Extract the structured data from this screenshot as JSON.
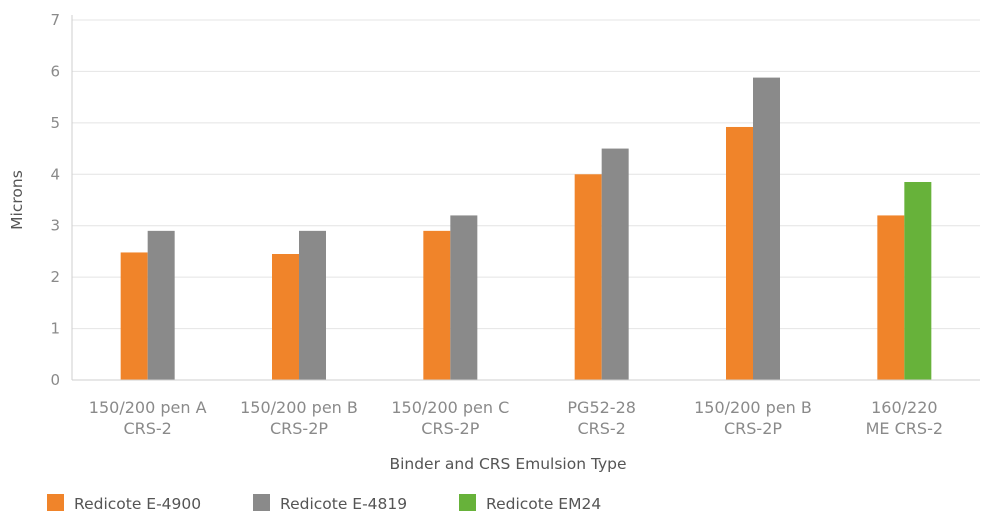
{
  "chart_data": {
    "type": "bar",
    "title": "",
    "xlabel": "Binder and CRS Emulsion Type",
    "ylabel": "Microns",
    "ylim": [
      0,
      7
    ],
    "yticks": [
      "0",
      "1",
      "2",
      "3",
      "4",
      "5",
      "6",
      "7"
    ],
    "grid": true,
    "legend_position": "bottom-left",
    "categories": [
      [
        "150/200 pen A",
        "CRS-2"
      ],
      [
        "150/200 pen B",
        "CRS-2P"
      ],
      [
        "150/200 pen C",
        "CRS-2P"
      ],
      [
        "PG52-28",
        "CRS-2"
      ],
      [
        "150/200 pen B",
        "CRS-2P"
      ],
      [
        "160/220",
        "ME CRS-2"
      ]
    ],
    "series": [
      {
        "name": "Redicote E-4900",
        "color": "#f0842a",
        "values": [
          2.48,
          2.45,
          2.9,
          4.0,
          4.92,
          3.2
        ]
      },
      {
        "name": "Redicote E-4819",
        "color": "#8a8a8a",
        "values": [
          2.9,
          2.9,
          3.2,
          4.5,
          5.88,
          null
        ]
      },
      {
        "name": "Redicote EM24",
        "color": "#67b23a",
        "values": [
          null,
          null,
          null,
          null,
          null,
          3.85
        ]
      }
    ]
  }
}
